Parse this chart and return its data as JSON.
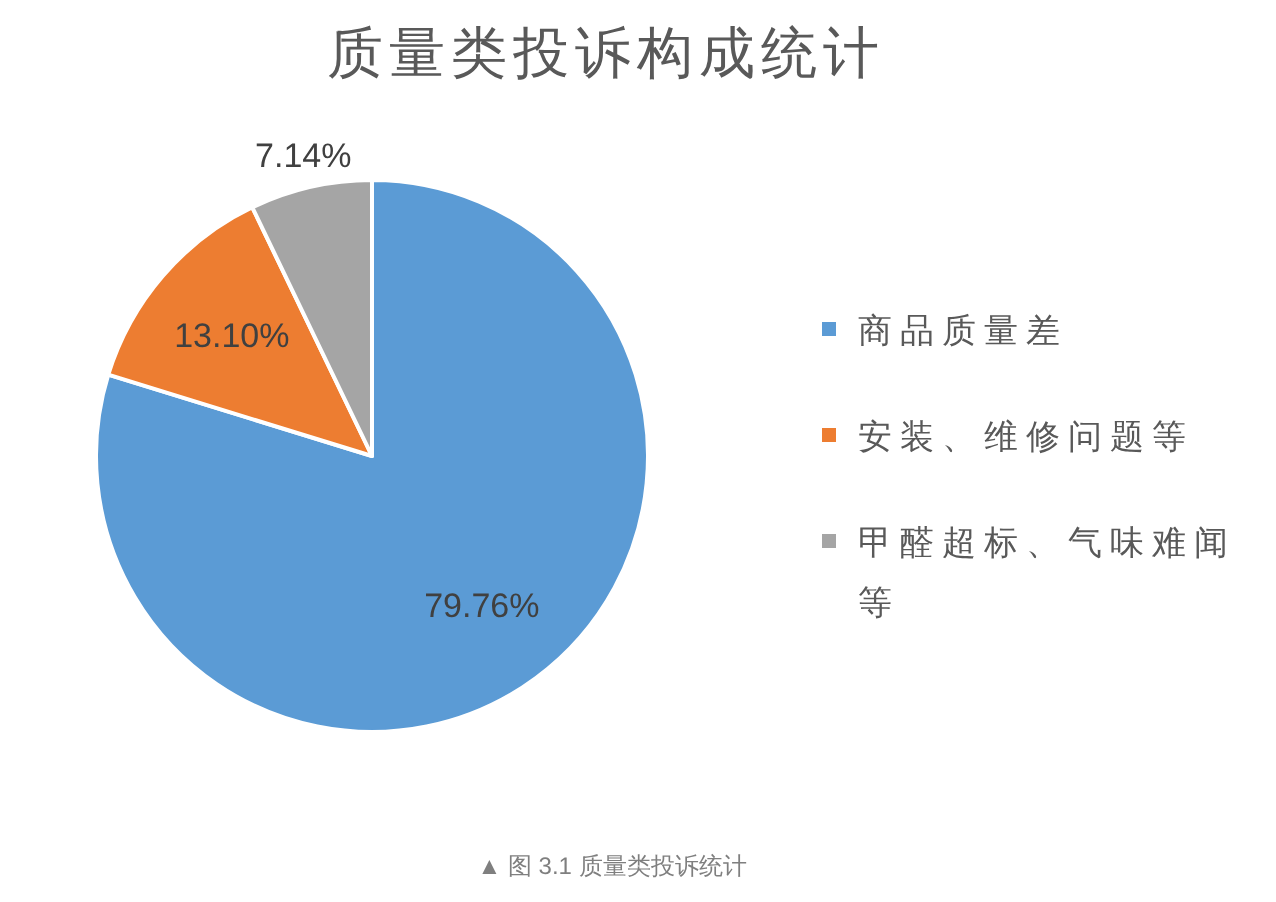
{
  "chart_data": {
    "type": "pie",
    "title": "质量类投诉构成统计",
    "categories": [
      "商品质量差",
      "安装、维修问题等",
      "甲醛超标、气味难闻等"
    ],
    "values": [
      79.76,
      13.1,
      7.14
    ],
    "colors": [
      "#5b9bd5",
      "#ed7d31",
      "#a5a5a5"
    ],
    "value_labels": [
      "79.76%",
      "13.10%",
      "7.14%"
    ],
    "legend": "right",
    "annotations": [
      "▲ 图 3.1 质量类投诉统计"
    ]
  }
}
